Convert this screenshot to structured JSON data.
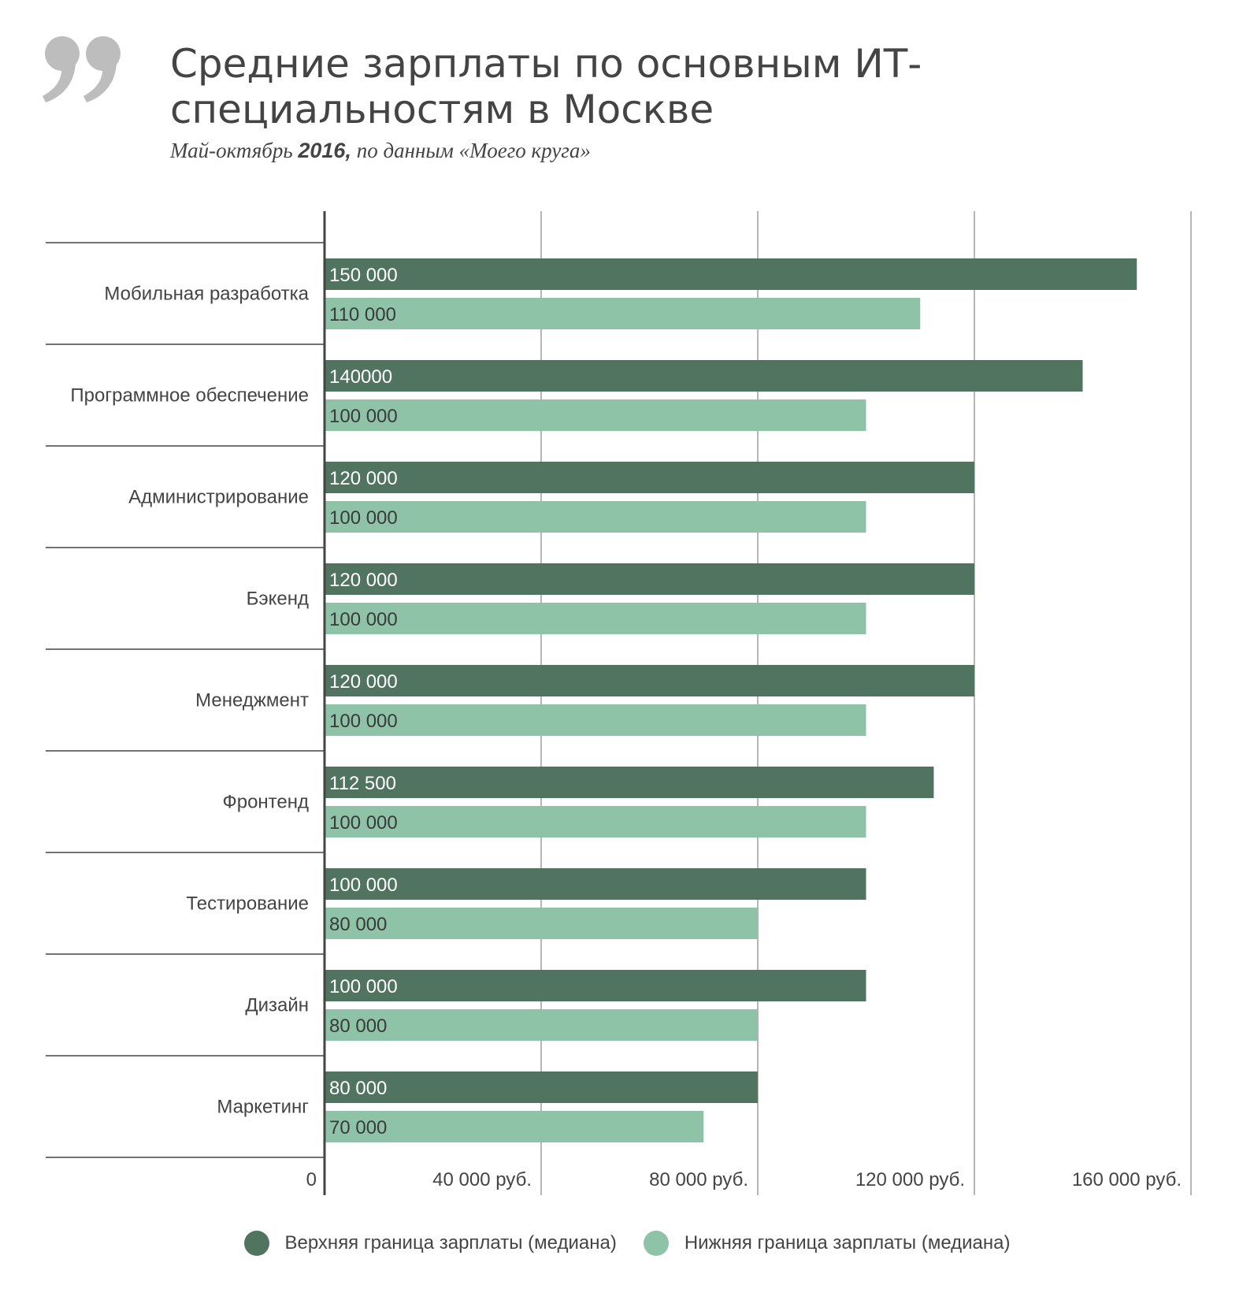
{
  "header": {
    "title": "Средние зарплаты по основным ИТ-специальностям в Москве",
    "subtitle_pre": "Май-октябрь",
    "subtitle_year": "2016,",
    "subtitle_post": "по данным «Моего круга»"
  },
  "colors": {
    "upper": "#517461",
    "lower": "#8fc3a7",
    "quote": "#bdbdbd",
    "text": "#444444"
  },
  "icons": {
    "quote": "closing-quote-icon"
  },
  "chart_data": {
    "type": "bar",
    "orientation": "horizontal",
    "categories": [
      "Мобильная разработка",
      "Программное обеспечение",
      "Администрирование",
      "Бэкенд",
      "Менеджмент",
      "Фронтенд",
      "Тестирование",
      "Дизайн",
      "Маркетинг"
    ],
    "series": [
      {
        "name": "Верхняя граница зарплаты (медиана)",
        "values": [
          150000,
          140000,
          120000,
          120000,
          120000,
          112500,
          100000,
          100000,
          80000
        ],
        "labels": [
          "150 000",
          "140000",
          "120 000",
          "120 000",
          "120 000",
          "112 500",
          "100 000",
          "100 000",
          "80 000"
        ]
      },
      {
        "name": "Нижняя граница зарплаты (медиана)",
        "values": [
          110000,
          100000,
          100000,
          100000,
          100000,
          100000,
          80000,
          80000,
          70000
        ],
        "labels": [
          "110 000",
          "100 000",
          "100 000",
          "100 000",
          "100 000",
          "100 000",
          "80 000",
          "80 000",
          "70 000"
        ]
      }
    ],
    "xlim": [
      0,
      160000
    ],
    "xticks": [
      0,
      40000,
      80000,
      120000,
      160000
    ],
    "xtick_labels": [
      "0",
      "40 000 руб.",
      "80 000 руб.",
      "120 000 руб.",
      "160 000 руб."
    ],
    "grid": true,
    "legend": "bottom"
  }
}
